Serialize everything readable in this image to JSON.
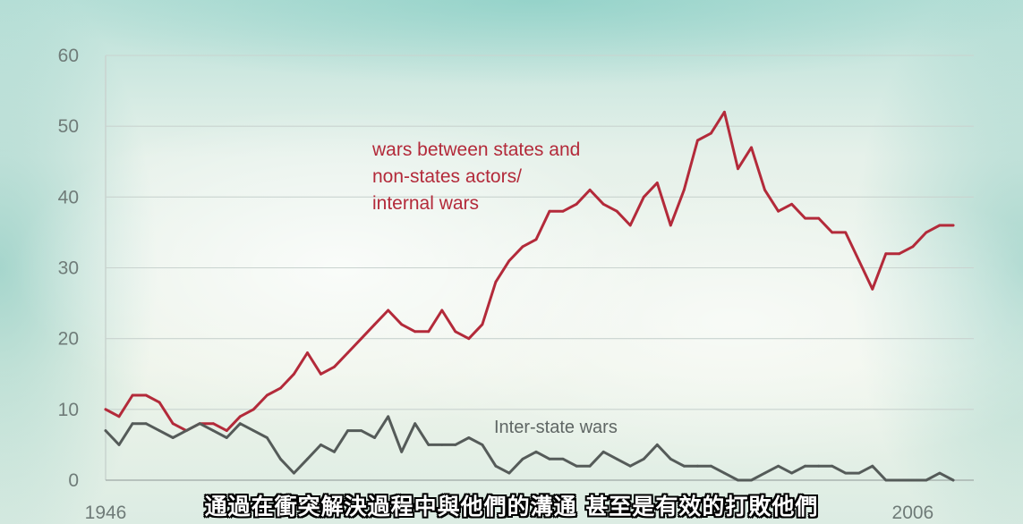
{
  "chart_data": {
    "type": "line",
    "title": "",
    "xlabel": "",
    "ylabel": "",
    "ylim": [
      0,
      60
    ],
    "yticks": [
      0,
      10,
      20,
      30,
      40,
      50,
      60
    ],
    "xlim": [
      1946,
      2010
    ],
    "xtick_labels": [
      {
        "year": 1946,
        "label": "1946"
      },
      {
        "year": 2006,
        "label": "2006"
      }
    ],
    "grid": true,
    "legend": "none",
    "series": [
      {
        "name": "wars between states and non-states actors/ internal wars",
        "color": "#b32a3a",
        "annotation_lines": [
          "wars between states and",
          "non-states actors/",
          "internal wars"
        ],
        "x": [
          1946,
          1947,
          1948,
          1949,
          1950,
          1951,
          1952,
          1953,
          1954,
          1955,
          1956,
          1957,
          1958,
          1959,
          1960,
          1961,
          1962,
          1963,
          1964,
          1965,
          1966,
          1967,
          1968,
          1969,
          1970,
          1971,
          1972,
          1973,
          1974,
          1975,
          1976,
          1977,
          1978,
          1979,
          1980,
          1981,
          1982,
          1983,
          1984,
          1985,
          1986,
          1987,
          1988,
          1989,
          1990,
          1991,
          1992,
          1993,
          1994,
          1995,
          1996,
          1997,
          1998,
          1999,
          2000,
          2001,
          2002,
          2003,
          2004,
          2005,
          2006,
          2007,
          2008,
          2009
        ],
        "values": [
          10,
          9,
          12,
          12,
          11,
          8,
          7,
          8,
          8,
          7,
          9,
          10,
          12,
          13,
          15,
          18,
          15,
          16,
          18,
          20,
          22,
          24,
          22,
          21,
          21,
          24,
          21,
          20,
          22,
          28,
          31,
          33,
          34,
          38,
          38,
          39,
          41,
          39,
          38,
          36,
          40,
          42,
          36,
          41,
          48,
          49,
          52,
          44,
          47,
          41,
          38,
          39,
          37,
          37,
          35,
          35,
          31,
          27,
          32,
          32,
          33,
          35,
          36,
          36
        ]
      },
      {
        "name": "Inter-state wars",
        "color": "#555b59",
        "annotation_lines": [
          "Inter-state wars"
        ],
        "x": [
          1946,
          1947,
          1948,
          1949,
          1950,
          1951,
          1952,
          1953,
          1954,
          1955,
          1956,
          1957,
          1958,
          1959,
          1960,
          1961,
          1962,
          1963,
          1964,
          1965,
          1966,
          1967,
          1968,
          1969,
          1970,
          1971,
          1972,
          1973,
          1974,
          1975,
          1976,
          1977,
          1978,
          1979,
          1980,
          1981,
          1982,
          1983,
          1984,
          1985,
          1986,
          1987,
          1988,
          1989,
          1990,
          1991,
          1992,
          1993,
          1994,
          1995,
          1996,
          1997,
          1998,
          1999,
          2000,
          2001,
          2002,
          2003,
          2004,
          2005,
          2006,
          2007,
          2008,
          2009
        ],
        "values": [
          7,
          5,
          8,
          8,
          7,
          6,
          7,
          8,
          7,
          6,
          8,
          7,
          6,
          3,
          1,
          3,
          5,
          4,
          7,
          7,
          6,
          9,
          4,
          8,
          5,
          5,
          5,
          6,
          5,
          2,
          1,
          3,
          4,
          3,
          3,
          2,
          2,
          4,
          3,
          2,
          3,
          5,
          3,
          2,
          2,
          2,
          1,
          0,
          0,
          1,
          2,
          1,
          2,
          2,
          2,
          1,
          1,
          2,
          0,
          0,
          0,
          0,
          1,
          0
        ]
      }
    ]
  },
  "subtitle": "通過在衝突解決過程中與他們的溝通 甚至是有效的打敗他們"
}
